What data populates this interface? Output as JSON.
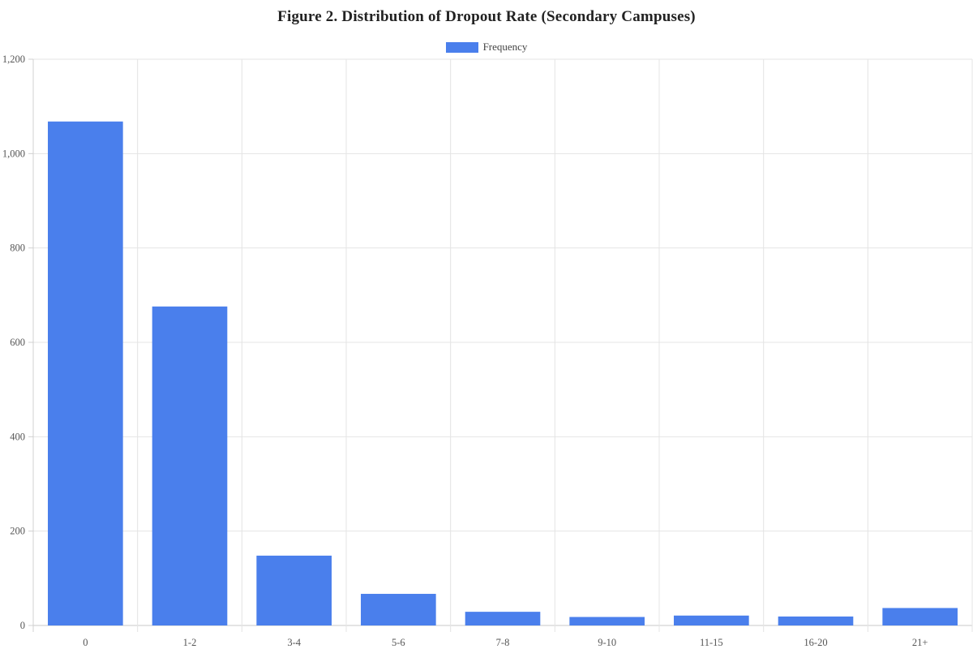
{
  "title": "Figure 2. Distribution of Dropout Rate (Secondary Campuses)",
  "legend": {
    "label": "Frequency",
    "color": "#4a7fec"
  },
  "chart_data": {
    "type": "bar",
    "title": "Figure 2. Distribution of Dropout Rate (Secondary Campuses)",
    "xlabel": "",
    "ylabel": "",
    "categories": [
      "0",
      "1-2",
      "3-4",
      "5-6",
      "7-8",
      "9-10",
      "11-15",
      "16-20",
      "21+"
    ],
    "series": [
      {
        "name": "Frequency",
        "color": "#4a7fec",
        "values": [
          1068,
          676,
          148,
          67,
          29,
          18,
          21,
          19,
          37
        ]
      }
    ],
    "ylim": [
      0,
      1200
    ],
    "yticks": [
      0,
      200,
      400,
      600,
      800,
      1000,
      1200
    ],
    "ytick_labels": [
      "0",
      "200",
      "400",
      "600",
      "800",
      "1,000",
      "1,200"
    ],
    "grid": true,
    "legend_position": "top"
  }
}
